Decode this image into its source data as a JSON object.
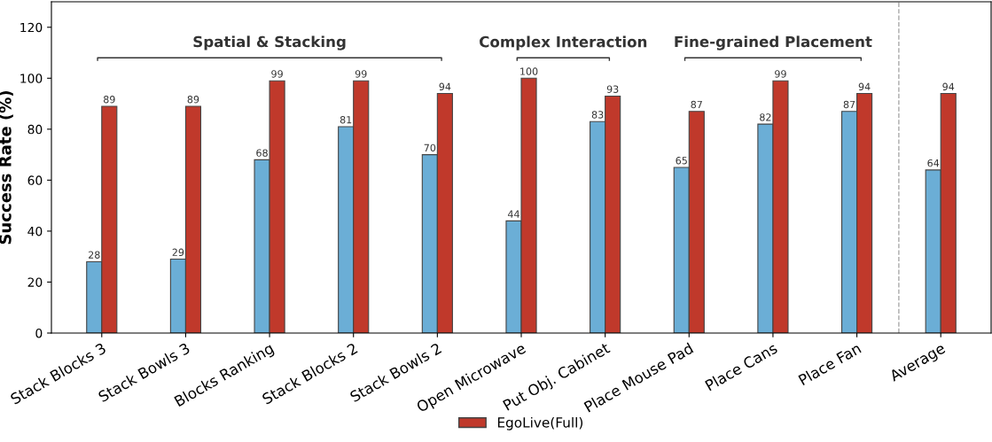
{
  "chart_data": {
    "type": "bar",
    "ylabel": "Success Rate (%)",
    "categories": [
      "Stack Blocks 3",
      "Stack Bowls 3",
      "Blocks Ranking",
      "Stack Blocks 2",
      "Stack Bowls 2",
      "Open Microwave",
      "Put Obj. Cabinet",
      "Place Mouse Pad",
      "Place Cans",
      "Place Fan",
      "Average"
    ],
    "series": [
      {
        "color": "#6baed6",
        "values": [
          28,
          29,
          68,
          81,
          70,
          44,
          83,
          65,
          82,
          87,
          64
        ]
      },
      {
        "name": "EgoLive(Full)",
        "color": "#c0392b",
        "values": [
          89,
          89,
          99,
          99,
          94,
          100,
          93,
          87,
          99,
          94,
          94
        ]
      }
    ],
    "ylim": [
      0,
      130
    ],
    "yticks": [
      0,
      20,
      40,
      60,
      80,
      100,
      120
    ],
    "data_labels": true,
    "legend": "bottom",
    "grid": false,
    "annotations": [
      "Spatial & Stacking",
      "Complex Interaction",
      "Fine-grained Placement"
    ]
  }
}
